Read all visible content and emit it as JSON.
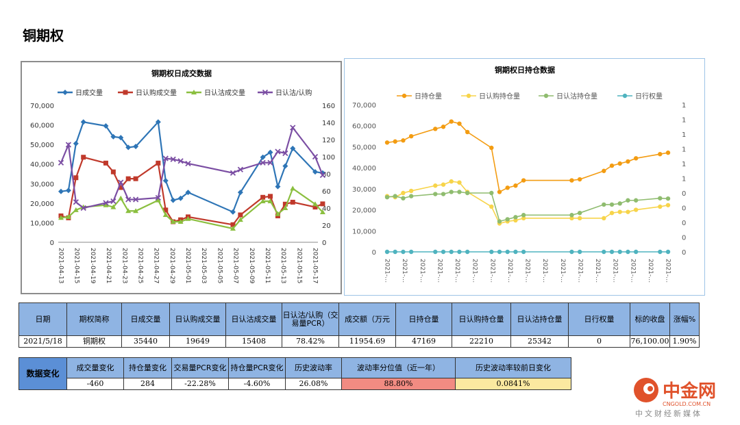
{
  "page_title": "铜期权",
  "chart_data": [
    {
      "type": "line",
      "title": "铜期权日成交数据",
      "x": [
        "2021-04-13",
        "2021-04-14",
        "2021-04-15",
        "2021-04-16",
        "2021-04-19",
        "2021-04-20",
        "2021-04-21",
        "2021-04-22",
        "2021-04-23",
        "2021-04-26",
        "2021-04-27",
        "2021-04-28",
        "2021-04-29",
        "2021-04-30",
        "2021-05-06",
        "2021-05-07",
        "2021-05-10",
        "2021-05-11",
        "2021-05-12",
        "2021-05-13",
        "2021-05-14",
        "2021-05-17",
        "2021-05-18"
      ],
      "x_tick_labels": [
        "2021-04-13",
        "2021-04-15",
        "2021-04-19",
        "2021-04-21",
        "2021-04-23",
        "2021-04-25",
        "2021-04-27",
        "2021-04-29",
        "2021-05-01",
        "2021-05-03",
        "2021-05-05",
        "2021-05-07",
        "2021-05-09",
        "2021-05-11",
        "2021-05-13",
        "2021-05-15",
        "2021-05-17"
      ],
      "y_left_ticks": [
        "0",
        "10,000",
        "20,000",
        "30,000",
        "40,000",
        "50,000",
        "60,000",
        "70,000"
      ],
      "y_right_ticks": [
        "0",
        "20",
        "40",
        "60",
        "80",
        "100",
        "120",
        "140",
        "160"
      ],
      "ylim_left": [
        0,
        70000
      ],
      "ylim_right": [
        0,
        160
      ],
      "series": [
        {
          "name": "日成交量",
          "color": "#2e75b6",
          "marker": "diamond",
          "axis": "left",
          "values": [
            26000,
            26500,
            50500,
            61500,
            59500,
            54000,
            53500,
            48500,
            49000,
            61500,
            31500,
            21500,
            22500,
            25500,
            15500,
            25500,
            43500,
            46000,
            28500,
            39000,
            48000,
            36000,
            35440
          ]
        },
        {
          "name": "日认购成交量",
          "color": "#c0392b",
          "marker": "square",
          "axis": "left",
          "values": [
            13500,
            12500,
            33000,
            43500,
            40500,
            36000,
            28000,
            32500,
            32500,
            40500,
            16500,
            10500,
            11500,
            13000,
            9000,
            14000,
            23000,
            23500,
            13500,
            19500,
            20500,
            18000,
            19649
          ]
        },
        {
          "name": "日认沽成交量",
          "color": "#8bbf3f",
          "marker": "triangle",
          "axis": "left",
          "values": [
            12500,
            13000,
            16500,
            18000,
            19000,
            18000,
            22500,
            16000,
            16000,
            21500,
            14000,
            10500,
            10500,
            12000,
            7000,
            11500,
            21000,
            21000,
            14500,
            17500,
            27500,
            19500,
            15408
          ]
        },
        {
          "name": "日认沽/认购",
          "color": "#7b4ea3",
          "marker": "x",
          "axis": "right",
          "values": [
            93,
            114,
            47,
            40,
            46,
            48,
            70,
            50,
            50,
            52,
            98,
            97,
            95,
            92,
            81,
            85,
            93,
            93,
            106,
            104,
            134,
            100,
            78.42
          ]
        }
      ]
    },
    {
      "type": "line",
      "title": "铜期权日持仓数据",
      "x_tick_labels": [
        "2021-…",
        "2021-…",
        "2021-…",
        "2021-…",
        "2021-…",
        "2021-…",
        "2021-…",
        "2021-…",
        "2021-…",
        "2021-…",
        "2021-…",
        "2021-…",
        "2021-…",
        "2021-…",
        "2021-…",
        "2021-…",
        "2021-…"
      ],
      "y_left_ticks": [
        "0",
        "10,000",
        "20,000",
        "30,000",
        "40,000",
        "50,000",
        "60,000",
        "70,000"
      ],
      "y_right_ticks": [
        "0",
        "0",
        "0",
        "0",
        "0",
        "1",
        "1",
        "1",
        "1",
        "1",
        "1"
      ],
      "ylim_left": [
        0,
        70000
      ],
      "x_days": [
        0,
        1,
        2,
        3,
        6,
        7,
        8,
        9,
        10,
        13,
        14,
        15,
        16,
        17,
        23,
        24,
        27,
        28,
        29,
        30,
        31,
        34,
        35
      ],
      "series": [
        {
          "name": "日持仓量",
          "color": "#f39c12",
          "marker": "circle",
          "values": [
            52000,
            52500,
            53000,
            55000,
            58500,
            59500,
            62000,
            61000,
            57000,
            49500,
            28500,
            30500,
            31500,
            34000,
            34000,
            34500,
            38500,
            41000,
            42000,
            43000,
            44500,
            46500,
            47169
          ]
        },
        {
          "name": "日认购持仓量",
          "color": "#f7d44a",
          "marker": "circle",
          "values": [
            26500,
            26000,
            28000,
            29000,
            31500,
            32000,
            33500,
            33000,
            28500,
            21500,
            13500,
            14500,
            15000,
            16000,
            16000,
            16000,
            16000,
            18500,
            19000,
            19000,
            20000,
            21500,
            22210
          ]
        },
        {
          "name": "日认沽持仓量",
          "color": "#8fbc6f",
          "marker": "circle",
          "values": [
            26000,
            26500,
            25500,
            26500,
            27500,
            27500,
            28500,
            28500,
            28000,
            28000,
            14500,
            15500,
            16500,
            17500,
            17500,
            18500,
            22500,
            22500,
            23000,
            24500,
            24500,
            25500,
            25342
          ]
        },
        {
          "name": "日行权量",
          "color": "#4fb3bf",
          "marker": "circle",
          "values": [
            0,
            0,
            0,
            0,
            0,
            0,
            0,
            0,
            0,
            0,
            0,
            0,
            0,
            0,
            0,
            0,
            0,
            0,
            0,
            0,
            0,
            0,
            0
          ]
        }
      ]
    }
  ],
  "table1": {
    "headers": [
      "日期",
      "期权简称",
      "日成交量",
      "日认购成交量",
      "日认沽成交量",
      "日认沽/认购（交易量PCR）",
      "成交额（万元",
      "日持仓量",
      "日认购持仓量",
      "日认沽持仓量",
      "日行权量",
      "标的收盘",
      "涨幅%"
    ],
    "row": [
      "2021/5/18",
      "铜期权",
      "35440",
      "19649",
      "15408",
      "78.42%",
      "11954.69",
      "47169",
      "22210",
      "25342",
      "0",
      "76,100.00",
      "1.90%"
    ]
  },
  "table2": {
    "row_header": "数据变化",
    "headers": [
      "成交量变化",
      "持仓量变化",
      "交易量PCR变化",
      "持仓量PCR变化",
      "历史波动率",
      "波动率分位值（近一年）",
      "历史波动率较前日变化"
    ],
    "row": [
      "-460",
      "284",
      "-22.28%",
      "-4.60%",
      "26.08%",
      "88.80%",
      "0.0841%"
    ],
    "highlight_colors": {
      "quantile": "#f28b82",
      "change": "#fbe9a0"
    }
  },
  "logo": {
    "name": "中金网",
    "url_text": "CNGOLD.COM.CN",
    "tagline": "中文财经新媒体",
    "color": "#e0522b"
  }
}
